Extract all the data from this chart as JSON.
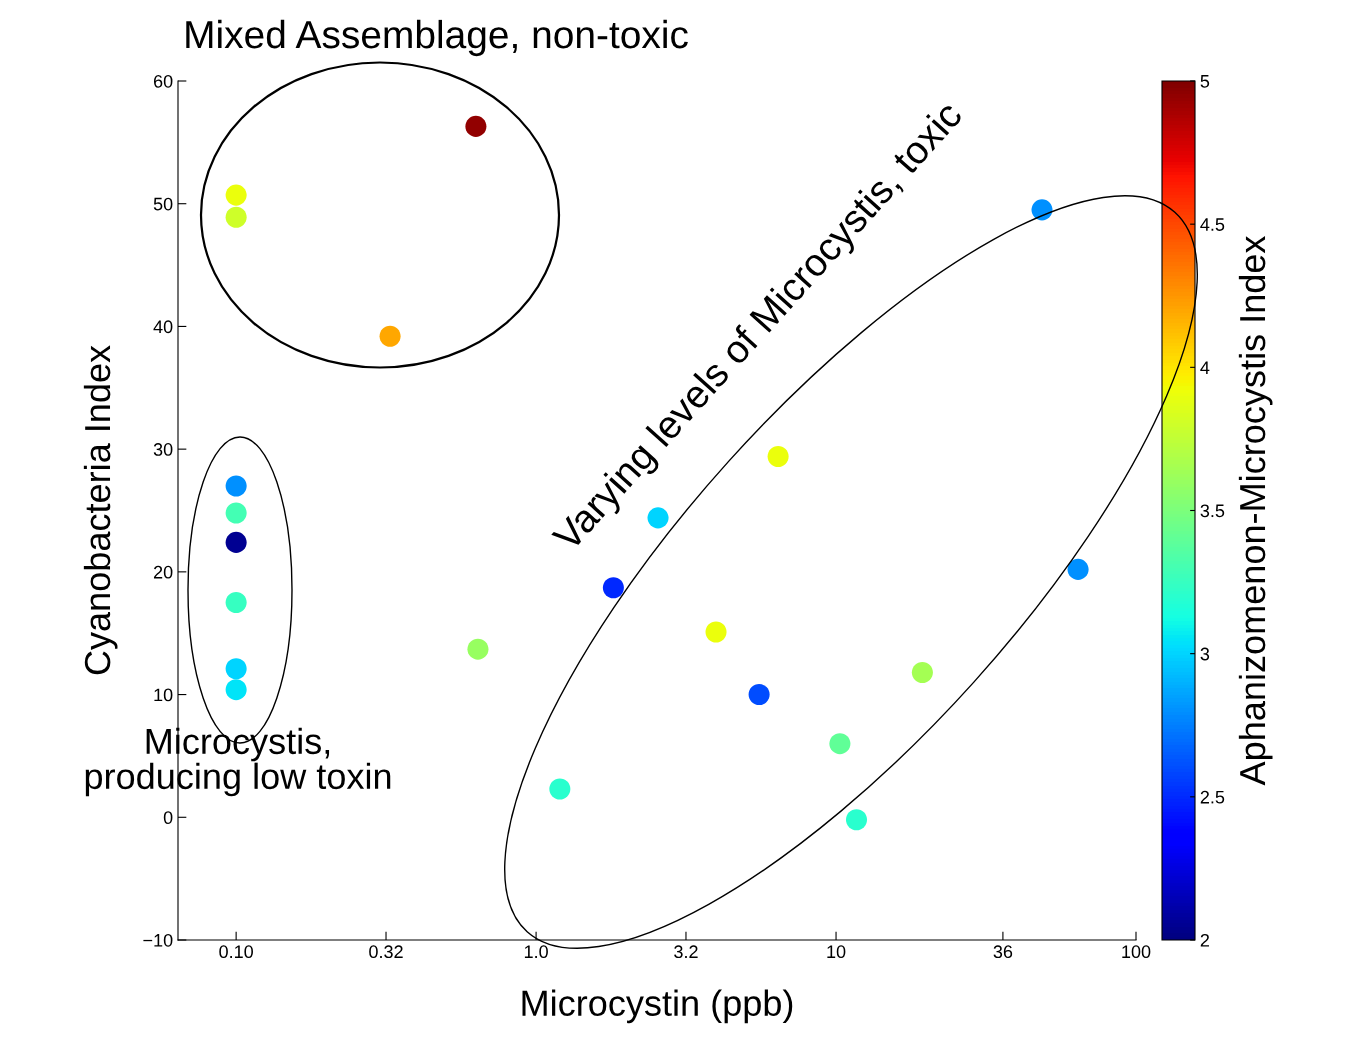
{
  "chart_data": {
    "type": "scatter",
    "xlabel": "Microcystin (ppb)",
    "ylabel": "Cyanobacteria Index",
    "clabel": "Aphanizomenon-Microcystis Index",
    "annotations": [
      "Mixed Assemblage, non-toxic",
      "Varying levels of Microcystis, toxic",
      "Microcystis,\nproducing low toxin"
    ],
    "log": "x",
    "xlim": [
      0.064,
      100
    ],
    "xticks": [
      {
        "value": 0.1,
        "label": "0.10"
      },
      {
        "value": 0.316,
        "label": "0.32"
      },
      {
        "value": 1,
        "label": "1.0"
      },
      {
        "value": 3.16,
        "label": "3.2"
      },
      {
        "value": 10,
        "label": "10"
      },
      36,
      {
        "value": 100,
        "label": "100"
      }
    ],
    "ylim": [
      -10,
      60
    ],
    "yticks": [
      {
        "value": -10,
        "label": "−10"
      },
      0,
      10,
      20,
      30,
      40,
      50,
      60
    ],
    "clim": [
      2,
      5
    ],
    "cticks": [
      2,
      2.5,
      3,
      3.5,
      4,
      4.5,
      5
    ],
    "grid": false,
    "legend": false,
    "marker": "circle",
    "series": [
      {
        "x": [
          0.63,
          0.1,
          0.1,
          0.326,
          0.1,
          0.1,
          0.1,
          0.1,
          0.1,
          0.1,
          0.64,
          1.2,
          1.81,
          2.55,
          3.98,
          5.54,
          6.41,
          10.3,
          11.7,
          19.4,
          48.6,
          64.1
        ],
        "values": [
          56.3,
          50.7,
          48.9,
          39.2,
          27.0,
          24.8,
          22.4,
          17.5,
          12.1,
          10.4,
          13.7,
          2.3,
          18.7,
          24.4,
          15.1,
          10.0,
          29.4,
          6.0,
          -0.2,
          11.8,
          49.5,
          20.2
        ],
        "cvalues": [
          4.95,
          3.9,
          3.8,
          4.2,
          2.8,
          3.3,
          2.05,
          3.25,
          3.0,
          3.05,
          3.6,
          3.2,
          2.5,
          3.0,
          3.9,
          2.6,
          3.9,
          3.4,
          3.2,
          3.65,
          2.8,
          2.8
        ]
      }
    ]
  }
}
